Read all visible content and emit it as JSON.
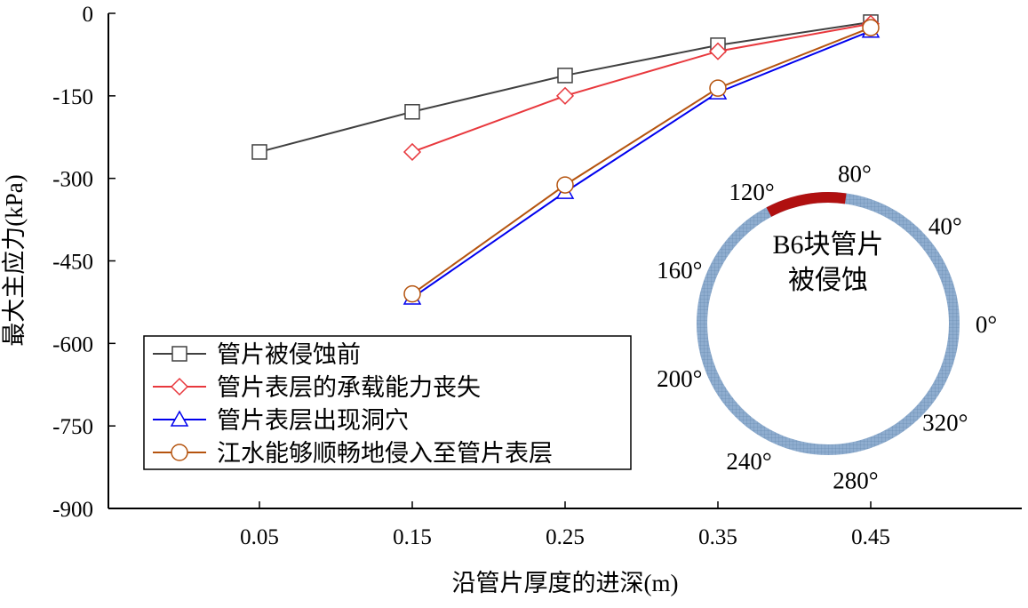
{
  "chart_data": {
    "type": "line",
    "title": "",
    "xlabel": "沿管片厚度的进深(m)",
    "ylabel": "最大主应力(kPa)",
    "xlim": [
      -0.05,
      0.55
    ],
    "ylim": [
      -900,
      0
    ],
    "xticks": [
      "0.05",
      "0.15",
      "0.25",
      "0.35",
      "0.45"
    ],
    "xtick_values": [
      0.05,
      0.15,
      0.25,
      0.35,
      0.45
    ],
    "yticks": [
      "0",
      "-150",
      "-300",
      "-450",
      "-600",
      "-750",
      "-900"
    ],
    "ytick_values": [
      0,
      -150,
      -300,
      -450,
      -600,
      -750,
      -900
    ],
    "grid": false,
    "legend_position": "bottom-left",
    "series": [
      {
        "name": "管片被侵蚀前",
        "color": "#404040",
        "marker": "square",
        "x": [
          0.05,
          0.15,
          0.25,
          0.35,
          0.45
        ],
        "values": [
          -252,
          -179,
          -113,
          -58,
          -16
        ]
      },
      {
        "name": "管片表层的承载能力丧失",
        "color": "#e8383d",
        "marker": "diamond",
        "x": [
          0.15,
          0.25,
          0.35,
          0.45
        ],
        "values": [
          -252,
          -150,
          -69,
          -19
        ]
      },
      {
        "name": "管片表层出现洞穴",
        "color": "#0000ee",
        "marker": "triangle",
        "x": [
          0.15,
          0.25,
          0.35,
          0.45
        ],
        "values": [
          -517,
          -325,
          -144,
          -32
        ]
      },
      {
        "name": "江水能够顺畅地侵入至管片表层",
        "color": "#b5540f",
        "marker": "circle",
        "x": [
          0.15,
          0.25,
          0.35,
          0.45
        ],
        "values": [
          -510,
          -312,
          -136,
          -26
        ]
      }
    ],
    "inset": {
      "label_line1": "B6块管片",
      "label_line2": "被侵蚀",
      "ring_color": "#8fadcf",
      "eroded_color": "#b01010",
      "eroded_range_deg": [
        82,
        118
      ],
      "angle_labels": [
        "0°",
        "40°",
        "80°",
        "120°",
        "160°",
        "200°",
        "240°",
        "280°",
        "320°"
      ],
      "angle_values": [
        0,
        40,
        80,
        120,
        160,
        200,
        240,
        280,
        320
      ]
    }
  }
}
